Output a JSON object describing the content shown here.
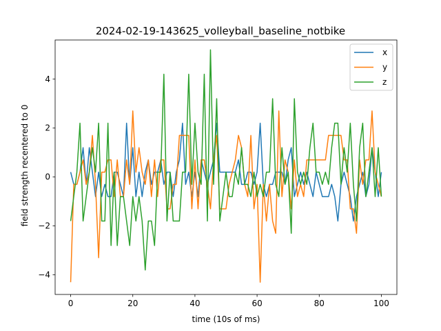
{
  "chart_data": {
    "type": "line",
    "title": "2024-02-19-143625_volleyball_baseline_notbike",
    "xlabel": "time (10s of ms)",
    "ylabel": "field strength recentered to 0",
    "xlim": [
      -5,
      105
    ],
    "ylim": [
      -4.8,
      5.6
    ],
    "xticks": [
      0,
      20,
      40,
      60,
      80,
      100
    ],
    "yticks": [
      -4,
      -2,
      0,
      2,
      4
    ],
    "legend_position": "top-right",
    "grid": false,
    "series": [
      {
        "name": "x",
        "color": "#1f77b4",
        "x": [
          0,
          1,
          2,
          3,
          4,
          5,
          6,
          7,
          8,
          9,
          10,
          11,
          12,
          13,
          14,
          15,
          16,
          17,
          18,
          19,
          20,
          21,
          22,
          23,
          24,
          25,
          26,
          27,
          28,
          29,
          30,
          31,
          32,
          33,
          34,
          35,
          36,
          37,
          38,
          39,
          40,
          41,
          42,
          43,
          44,
          45,
          46,
          47,
          48,
          49,
          50,
          51,
          52,
          53,
          54,
          55,
          56,
          57,
          58,
          59,
          60,
          61,
          62,
          63,
          64,
          65,
          66,
          67,
          68,
          69,
          70,
          71,
          72,
          73,
          74,
          75,
          76,
          77,
          78,
          79,
          80,
          81,
          82,
          83,
          84,
          85,
          86,
          87,
          88,
          89,
          90,
          91,
          92,
          93,
          94,
          95,
          96,
          97,
          98,
          99,
          100
        ],
        "y": [
          0.2,
          -0.3,
          -0.3,
          0.2,
          1.2,
          -0.3,
          1.2,
          0.2,
          -0.8,
          0.2,
          -0.8,
          -0.3,
          -0.8,
          -0.8,
          0.2,
          0.2,
          -0.3,
          -0.8,
          2.2,
          -0.3,
          1.2,
          -0.8,
          0.2,
          -0.8,
          0.2,
          0.7,
          -0.3,
          0.2,
          0.2,
          0.7,
          -0.3,
          0.2,
          0.2,
          -0.8,
          0.2,
          0.7,
          2.2,
          -0.3,
          0.2,
          -0.8,
          0.2,
          -0.8,
          0.7,
          0.2,
          -0.3,
          0.2,
          0.7,
          2.2,
          0.2,
          0.2,
          0.2,
          0.2,
          0.2,
          0.2,
          0.7,
          -0.3,
          -0.3,
          0.2,
          0.2,
          -0.3,
          0.2,
          2.2,
          -0.3,
          -0.8,
          -0.3,
          -0.3,
          0.2,
          0.2,
          0.2,
          -0.3,
          0.7,
          1.2,
          -0.8,
          -0.3,
          0.2,
          -0.3,
          0.2,
          -0.3,
          -0.8,
          0.2,
          -0.3,
          -0.8,
          -0.8,
          -0.8,
          -0.3,
          -0.8,
          -1.8,
          -0.3,
          0.2,
          -0.3,
          -0.8,
          -1.8,
          -0.8,
          -0.3,
          0.2,
          -0.8,
          -0.3,
          1.2,
          0.2,
          -0.8,
          0.2
        ]
      },
      {
        "name": "y",
        "color": "#ff7f0e",
        "x": [
          0,
          1,
          2,
          3,
          4,
          5,
          6,
          7,
          8,
          9,
          10,
          11,
          12,
          13,
          14,
          15,
          16,
          17,
          18,
          19,
          20,
          21,
          22,
          23,
          24,
          25,
          26,
          27,
          28,
          29,
          30,
          31,
          32,
          33,
          34,
          35,
          36,
          37,
          38,
          39,
          40,
          41,
          42,
          43,
          44,
          45,
          46,
          47,
          48,
          49,
          50,
          51,
          52,
          53,
          54,
          55,
          56,
          57,
          58,
          59,
          60,
          61,
          62,
          63,
          64,
          65,
          66,
          67,
          68,
          69,
          70,
          71,
          72,
          73,
          74,
          75,
          76,
          77,
          78,
          79,
          80,
          81,
          82,
          83,
          84,
          85,
          86,
          87,
          88,
          89,
          90,
          91,
          92,
          93,
          94,
          95,
          96,
          97,
          98,
          99,
          100
        ],
        "y": [
          -4.3,
          -0.3,
          -0.3,
          0.2,
          0.7,
          -0.3,
          0.2,
          1.7,
          -0.3,
          -3.3,
          0.2,
          0.2,
          0.7,
          0.7,
          -0.8,
          0.7,
          -0.8,
          -0.8,
          0.7,
          -0.3,
          2.7,
          0.2,
          1.2,
          0.2,
          -0.3,
          0.7,
          -0.8,
          0.7,
          -0.8,
          0.7,
          0.7,
          -1.3,
          -1.3,
          -0.3,
          -0.3,
          1.7,
          1.7,
          1.7,
          1.7,
          -1.3,
          0.7,
          -1.3,
          0.7,
          0.7,
          -0.3,
          -1.3,
          0.7,
          1.7,
          -1.3,
          -1.3,
          -1.3,
          -0.3,
          0.2,
          0.7,
          1.7,
          1.2,
          -0.3,
          -0.8,
          1.7,
          -1.3,
          -0.3,
          -4.3,
          -0.3,
          -1.8,
          -0.3,
          -1.8,
          -2.3,
          2.7,
          -0.8,
          0.7,
          0.2,
          -1.3,
          0.7,
          -0.8,
          -0.3,
          -0.8,
          0.7,
          0.7,
          0.7,
          0.7,
          0.7,
          0.7,
          0.7,
          1.7,
          1.7,
          1.7,
          1.7,
          1.7,
          0.7,
          0.7,
          -1.3,
          -1.3,
          -2.3,
          0.7,
          -0.3,
          0.7,
          0.7,
          2.7,
          0.2,
          -0.3,
          -0.8
        ]
      },
      {
        "name": "z",
        "color": "#2ca02c",
        "x": [
          0,
          1,
          2,
          3,
          4,
          5,
          6,
          7,
          8,
          9,
          10,
          11,
          12,
          13,
          14,
          15,
          16,
          17,
          18,
          19,
          20,
          21,
          22,
          23,
          24,
          25,
          26,
          27,
          28,
          29,
          30,
          31,
          32,
          33,
          34,
          35,
          36,
          37,
          38,
          39,
          40,
          41,
          42,
          43,
          44,
          45,
          46,
          47,
          48,
          49,
          50,
          51,
          52,
          53,
          54,
          55,
          56,
          57,
          58,
          59,
          60,
          61,
          62,
          63,
          64,
          65,
          66,
          67,
          68,
          69,
          70,
          71,
          72,
          73,
          74,
          75,
          76,
          77,
          78,
          79,
          80,
          81,
          82,
          83,
          84,
          85,
          86,
          87,
          88,
          89,
          90,
          91,
          92,
          93,
          94,
          95,
          96,
          97,
          98,
          99,
          100
        ],
        "y": [
          -1.8,
          -0.8,
          0.2,
          2.2,
          -1.8,
          -0.8,
          0.2,
          1.2,
          0.2,
          2.2,
          -1.8,
          -1.8,
          2.2,
          -2.8,
          0.2,
          -2.8,
          -0.8,
          -0.8,
          -1.8,
          -2.8,
          -0.8,
          -1.8,
          -0.8,
          -1.8,
          -3.8,
          -1.8,
          -1.8,
          -2.8,
          0.2,
          0.2,
          4.2,
          -1.8,
          0.2,
          -1.8,
          -1.8,
          -1.8,
          0.2,
          0.2,
          4.2,
          -0.3,
          2.2,
          0.2,
          -0.3,
          4.2,
          -1.8,
          5.2,
          -0.3,
          3.2,
          -1.8,
          -0.8,
          0.2,
          -0.8,
          -0.8,
          0.2,
          -0.3,
          1.2,
          -0.3,
          -0.3,
          -0.8,
          0.2,
          -0.8,
          -0.3,
          -0.8,
          0.2,
          0.2,
          3.2,
          -0.3,
          -0.8,
          1.2,
          -0.3,
          0.2,
          -2.3,
          3.2,
          0.2,
          -0.3,
          0.2,
          -0.3,
          1.2,
          2.2,
          0.2,
          0.2,
          -0.3,
          0.2,
          -0.3,
          1.2,
          2.2,
          2.2,
          -0.3,
          1.2,
          0.2,
          2.2,
          -0.3,
          -1.8,
          1.2,
          2.2,
          -0.8,
          0.2,
          1.2,
          -0.8,
          1.2,
          -0.8
        ]
      }
    ]
  }
}
